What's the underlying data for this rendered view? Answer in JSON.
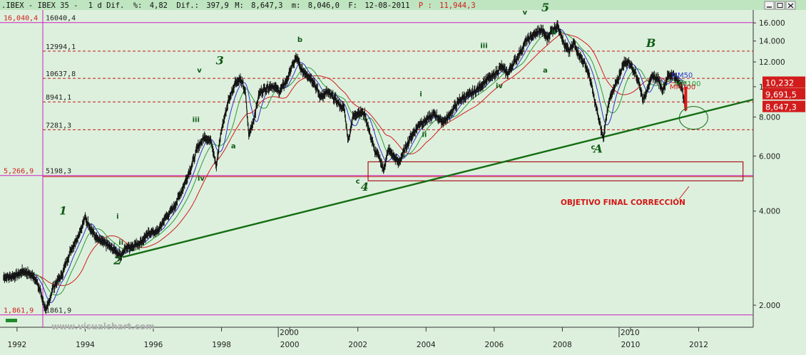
{
  "header": {
    "symbol": ".IBEX - IBEX 35 -",
    "period": "1 d Dif.",
    "pct_label": "%:",
    "pct_value": "4,82",
    "dif_label": "Dif.:",
    "dif_value": "397,9",
    "m_label": "M:",
    "m_value": "8,647,3",
    "m2_label": "m:",
    "m2_value": "8,046,0",
    "f_label": "F:",
    "f_value": "12-08-2011",
    "p_label": "P :",
    "p_value": "11,944,3"
  },
  "watermark": "www.visualchart.com",
  "objective_label": "OBJETIVO FINAL CORRECCIÓN",
  "colors": {
    "background": "#ddf0dd",
    "hline_magenta": "#d020c0",
    "hline_red_dash": "#c41414",
    "trendline": "#146e14",
    "wave_label": "#0e5a14",
    "candle": "#1a1a1a",
    "ma_red": "#d21c1c",
    "ma_blue": "#2c34c8",
    "ma_green": "#2c9a3c",
    "box": "#a8141c",
    "objective_text": "#d41414"
  },
  "chart_data": {
    "type": "line",
    "scale": "log",
    "ylim": [
      1700,
      17600
    ],
    "x_range": [
      1991.5,
      2013.6
    ],
    "yticks": [
      "16.000",
      "14.000",
      "12.000",
      "10.000",
      "8.000",
      "6.000",
      "4.000",
      "2.000"
    ],
    "ytick_values": [
      16000,
      14000,
      12000,
      10000,
      8000,
      6000,
      4000,
      2000
    ],
    "xticks": [
      "1992",
      "1994",
      "1996",
      "1998",
      "2000",
      "2002",
      "2004",
      "2006",
      "2008",
      "2010",
      "2012"
    ],
    "xtick_values": [
      1992,
      1994,
      1996,
      1998,
      2000,
      2002,
      2004,
      2006,
      2008,
      2010,
      2012
    ],
    "period_separators": [
      {
        "label": "2000",
        "x": 2000.0
      },
      {
        "label": "2010",
        "x": 2010.0
      }
    ],
    "horizontal_levels": [
      {
        "label": "16040,4",
        "left_label": "16,040,4",
        "value": 16040.4,
        "style": "magenta"
      },
      {
        "label": "12994,1",
        "value": 12994.1,
        "style": "red-dash"
      },
      {
        "label": "10637,8",
        "value": 10637.8,
        "style": "red-dash"
      },
      {
        "label": "8941,1",
        "value": 8941.1,
        "style": "red-dash"
      },
      {
        "label": "7281,3",
        "value": 7281.3,
        "style": "red-dash"
      },
      {
        "label": "5198,3",
        "left_label": "5,266,9",
        "value": 5198.3,
        "style": "magenta-red"
      },
      {
        "label": "1861,9",
        "left_label": "1,861,9",
        "value": 1861.9,
        "style": "magenta"
      }
    ],
    "series": [
      {
        "name": "IBEX 35",
        "points": [
          [
            1991.6,
            2450
          ],
          [
            1991.9,
            2480
          ],
          [
            1992.2,
            2570
          ],
          [
            1992.5,
            2470
          ],
          [
            1992.7,
            2200
          ],
          [
            1992.85,
            1900
          ],
          [
            1993.05,
            2270
          ],
          [
            1993.3,
            2480
          ],
          [
            1993.55,
            2950
          ],
          [
            1993.8,
            3350
          ],
          [
            1994.0,
            3800
          ],
          [
            1994.15,
            3550
          ],
          [
            1994.35,
            3250
          ],
          [
            1994.6,
            3150
          ],
          [
            1994.85,
            3000
          ],
          [
            1995.05,
            2880
          ],
          [
            1995.2,
            3050
          ],
          [
            1995.4,
            3100
          ],
          [
            1995.65,
            3200
          ],
          [
            1995.9,
            3430
          ],
          [
            1996.1,
            3420
          ],
          [
            1996.35,
            3800
          ],
          [
            1996.6,
            4100
          ],
          [
            1996.85,
            4700
          ],
          [
            1997.1,
            5500
          ],
          [
            1997.3,
            6400
          ],
          [
            1997.5,
            6900
          ],
          [
            1997.7,
            6700
          ],
          [
            1997.85,
            5600
          ],
          [
            1998.0,
            7300
          ],
          [
            1998.2,
            9000
          ],
          [
            1998.4,
            10300
          ],
          [
            1998.55,
            10600
          ],
          [
            1998.7,
            9600
          ],
          [
            1998.8,
            7000
          ],
          [
            1998.95,
            7900
          ],
          [
            1999.1,
            9500
          ],
          [
            1999.3,
            9900
          ],
          [
            1999.5,
            10100
          ],
          [
            1999.7,
            9650
          ],
          [
            1999.9,
            10400
          ],
          [
            2000.05,
            11500
          ],
          [
            2000.2,
            12400
          ],
          [
            2000.35,
            11300
          ],
          [
            2000.5,
            11000
          ],
          [
            2000.7,
            10400
          ],
          [
            2000.9,
            9300
          ],
          [
            2001.1,
            9600
          ],
          [
            2001.3,
            9200
          ],
          [
            2001.45,
            8800
          ],
          [
            2001.6,
            8500
          ],
          [
            2001.72,
            6700
          ],
          [
            2001.85,
            8000
          ],
          [
            2002.0,
            8300
          ],
          [
            2002.2,
            8200
          ],
          [
            2002.35,
            7100
          ],
          [
            2002.5,
            6200
          ],
          [
            2002.65,
            5900
          ],
          [
            2002.75,
            5400
          ],
          [
            2002.9,
            6300
          ],
          [
            2003.05,
            6000
          ],
          [
            2003.2,
            5700
          ],
          [
            2003.35,
            6200
          ],
          [
            2003.55,
            6900
          ],
          [
            2003.8,
            7600
          ],
          [
            2004.0,
            7800
          ],
          [
            2004.25,
            8200
          ],
          [
            2004.45,
            7750
          ],
          [
            2004.6,
            7850
          ],
          [
            2004.8,
            8500
          ],
          [
            2005.0,
            9100
          ],
          [
            2005.3,
            9450
          ],
          [
            2005.55,
            9900
          ],
          [
            2005.8,
            10600
          ],
          [
            2006.0,
            10900
          ],
          [
            2006.2,
            11600
          ],
          [
            2006.4,
            11000
          ],
          [
            2006.55,
            11800
          ],
          [
            2006.75,
            12800
          ],
          [
            2006.95,
            14100
          ],
          [
            2007.2,
            14800
          ],
          [
            2007.4,
            15200
          ],
          [
            2007.55,
            14300
          ],
          [
            2007.7,
            15200
          ],
          [
            2007.85,
            15700
          ],
          [
            2007.95,
            15000
          ],
          [
            2008.05,
            13600
          ],
          [
            2008.2,
            13000
          ],
          [
            2008.35,
            13800
          ],
          [
            2008.5,
            12600
          ],
          [
            2008.65,
            11900
          ],
          [
            2008.8,
            10800
          ],
          [
            2008.95,
            9000
          ],
          [
            2009.1,
            7600
          ],
          [
            2009.2,
            6800
          ],
          [
            2009.35,
            8900
          ],
          [
            2009.5,
            9700
          ],
          [
            2009.65,
            10700
          ],
          [
            2009.8,
            11900
          ],
          [
            2009.95,
            12000
          ],
          [
            2010.1,
            11300
          ],
          [
            2010.25,
            10300
          ],
          [
            2010.38,
            9000
          ],
          [
            2010.5,
            10000
          ],
          [
            2010.65,
            10800
          ],
          [
            2010.8,
            10600
          ],
          [
            2010.95,
            9800
          ],
          [
            2011.1,
            10800
          ],
          [
            2011.25,
            11000
          ],
          [
            2011.4,
            10300
          ],
          [
            2011.52,
            10000
          ],
          [
            2011.6,
            8500
          ],
          [
            2011.62,
            8647
          ]
        ]
      }
    ],
    "trendline": {
      "from": [
        1995.1,
        2850
      ],
      "to": [
        2013.6,
        9100
      ]
    },
    "objective_box": {
      "x0": 2002.3,
      "x1": 2013.3,
      "y_top": 5750,
      "y_bottom": 5000
    },
    "overlay_labels": [
      "MM50",
      "MM100",
      "MM200"
    ],
    "price_boxes": [
      {
        "label": "10,232",
        "value": 10232,
        "color": "#d21c1c"
      },
      {
        "label": "9,691,5",
        "value": 9691.5,
        "color": "#d21c1c"
      },
      {
        "label": "8,647,3",
        "value": 8647.3,
        "color": "#d21c1c"
      }
    ],
    "wave_labels": [
      {
        "text": "1",
        "x": 1993.35,
        "y": 3900,
        "size": "big"
      },
      {
        "text": "i",
        "x": 1994.95,
        "y": 3780,
        "size": "small"
      },
      {
        "text": "ii",
        "x": 1995.05,
        "y": 3120,
        "size": "small"
      },
      {
        "text": "2",
        "x": 1994.95,
        "y": 2700,
        "size": "big"
      },
      {
        "text": "iii",
        "x": 1997.25,
        "y": 7700,
        "size": "small"
      },
      {
        "text": "iv",
        "x": 1997.4,
        "y": 5000,
        "size": "small"
      },
      {
        "text": "v",
        "x": 1997.35,
        "y": 11100,
        "size": "small"
      },
      {
        "text": "3",
        "x": 1997.95,
        "y": 11800,
        "size": "big"
      },
      {
        "text": "a",
        "x": 1998.35,
        "y": 6350,
        "size": "small"
      },
      {
        "text": "b",
        "x": 2000.3,
        "y": 13900,
        "size": "small"
      },
      {
        "text": "c",
        "x": 2002.0,
        "y": 4900,
        "size": "small"
      },
      {
        "text": "4",
        "x": 2002.2,
        "y": 4650,
        "size": "big"
      },
      {
        "text": "i",
        "x": 2003.85,
        "y": 9300,
        "size": "small"
      },
      {
        "text": "ii",
        "x": 2003.95,
        "y": 6900,
        "size": "small"
      },
      {
        "text": "iii",
        "x": 2005.7,
        "y": 13300,
        "size": "small"
      },
      {
        "text": "iv",
        "x": 2006.15,
        "y": 9900,
        "size": "small"
      },
      {
        "text": "v",
        "x": 2006.9,
        "y": 17000,
        "size": "small"
      },
      {
        "text": "5",
        "x": 2007.5,
        "y": 17400,
        "size": "big"
      },
      {
        "text": "b",
        "x": 2007.75,
        "y": 14700,
        "size": "small"
      },
      {
        "text": "a",
        "x": 2007.5,
        "y": 11100,
        "size": "small"
      },
      {
        "text": "c",
        "x": 2008.9,
        "y": 6300,
        "size": "small"
      },
      {
        "text": "A",
        "x": 2009.05,
        "y": 6150,
        "size": "big"
      },
      {
        "text": "B",
        "x": 2010.6,
        "y": 13400,
        "size": "big"
      }
    ]
  }
}
